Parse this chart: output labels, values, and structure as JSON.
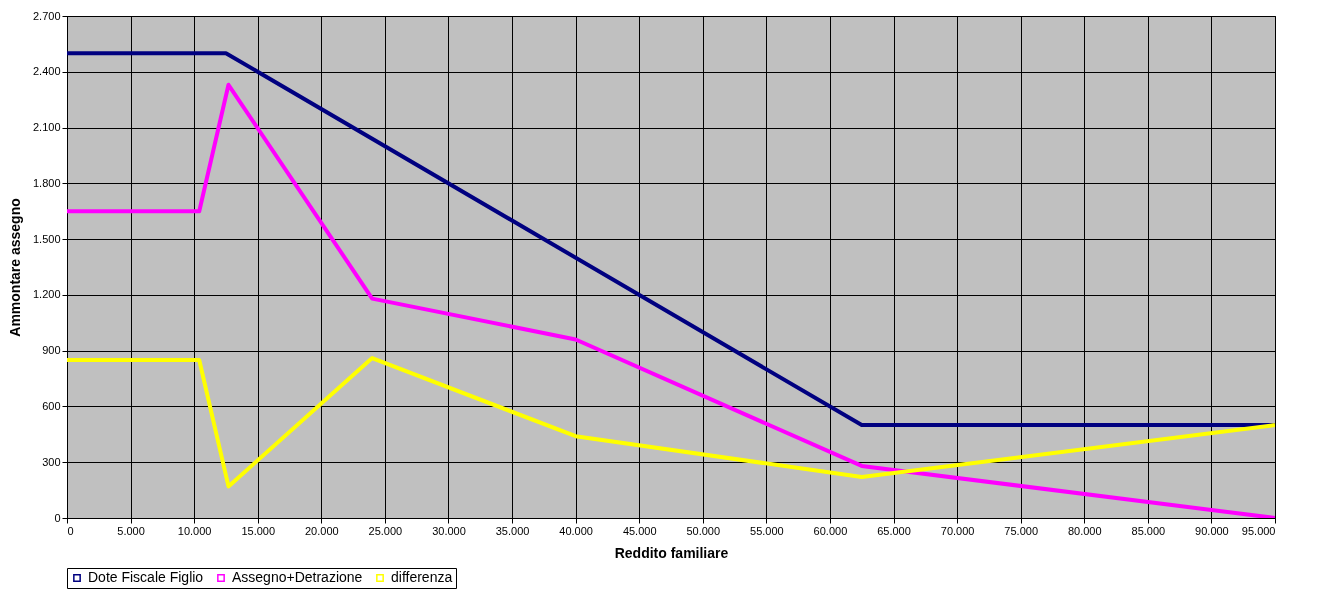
{
  "chart_data": {
    "type": "line",
    "xlabel": "Reddito familiare",
    "ylabel": "Ammontare assegno",
    "series": [
      {
        "name": "Dote Fiscale Figlio",
        "color": "#000080",
        "x": [
          0,
          12500,
          62500,
          95000
        ],
        "values": [
          2500,
          2500,
          500,
          500
        ]
      },
      {
        "name": "Assegno+Detrazione",
        "color": "#ff00ff",
        "x": [
          0,
          10400,
          12700,
          24000,
          40000,
          62500,
          95000
        ],
        "values": [
          1650,
          1650,
          2330,
          1180,
          960,
          280,
          0
        ]
      },
      {
        "name": "differenza",
        "color": "#ffff00",
        "x": [
          0,
          10400,
          12700,
          24000,
          40000,
          62500,
          95000
        ],
        "values": [
          850,
          850,
          170,
          860,
          440,
          220,
          500
        ]
      }
    ],
    "xlim": [
      0,
      95000
    ],
    "xticks": [
      0,
      {
        "value": 5000,
        "label": "5.000"
      },
      {
        "value": 10000,
        "label": "10.000"
      },
      {
        "value": 15000,
        "label": "15.000"
      },
      {
        "value": 20000,
        "label": "20.000"
      },
      {
        "value": 25000,
        "label": "25.000"
      },
      {
        "value": 30000,
        "label": "30.000"
      },
      {
        "value": 35000,
        "label": "35.000"
      },
      {
        "value": 40000,
        "label": "40.000"
      },
      {
        "value": 45000,
        "label": "45.000"
      },
      {
        "value": 50000,
        "label": "50.000"
      },
      {
        "value": 55000,
        "label": "55.000"
      },
      {
        "value": 60000,
        "label": "60.000"
      },
      {
        "value": 65000,
        "label": "65.000"
      },
      {
        "value": 70000,
        "label": "70.000"
      },
      {
        "value": 75000,
        "label": "75.000"
      },
      {
        "value": 80000,
        "label": "80.000"
      },
      {
        "value": 85000,
        "label": "85.000"
      },
      {
        "value": 90000,
        "label": "90.000"
      },
      {
        "value": 95000,
        "label": "95.000"
      }
    ],
    "ylim": [
      0,
      2700
    ],
    "yticks": [
      0,
      300,
      600,
      900,
      {
        "value": 1200,
        "label": "1.200"
      },
      {
        "value": 1500,
        "label": "1.500"
      },
      {
        "value": 1800,
        "label": "1.800"
      },
      {
        "value": 2100,
        "label": "2.100"
      },
      {
        "value": 2400,
        "label": "2.400"
      },
      {
        "value": 2700,
        "label": "2.700"
      }
    ],
    "grid": true,
    "legend": "bottom"
  }
}
